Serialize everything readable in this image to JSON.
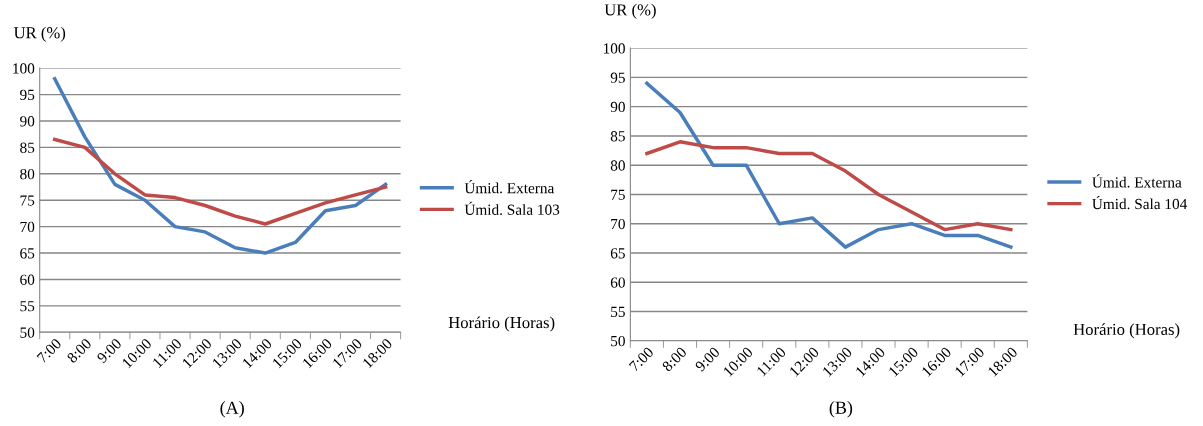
{
  "chart_data": [
    {
      "type": "line",
      "ylabel": "UR (%)",
      "xlabel": "Horário (Horas)",
      "annotations": [
        "(A)"
      ],
      "categories": [
        "7:00",
        "8:00",
        "9:00",
        "10:00",
        "11:00",
        "12:00",
        "13:00",
        "14:00",
        "15:00",
        "16:00",
        "17:00",
        "18:00"
      ],
      "series": [
        {
          "name": "Úmid. Externa",
          "color": "#4a7ebb",
          "values": [
            98,
            87,
            78,
            75,
            70,
            69,
            66,
            65,
            67,
            73,
            74,
            78
          ]
        },
        {
          "name": "Úmid. Sala 103",
          "color": "#be4b48",
          "values": [
            86.5,
            85,
            80,
            76,
            75.5,
            74,
            72,
            70.5,
            72.5,
            74.5,
            76,
            77.5
          ]
        }
      ],
      "ylim": [
        50,
        100
      ],
      "yticks": [
        50,
        55,
        60,
        65,
        70,
        75,
        80,
        85,
        90,
        95,
        100
      ],
      "grid": "y",
      "legend": "right"
    },
    {
      "type": "line",
      "ylabel": "UR (%)",
      "xlabel": "Horário (Horas)",
      "annotations": [
        "(B)"
      ],
      "categories": [
        "7:00",
        "8:00",
        "9:00",
        "10:00",
        "11:00",
        "12:00",
        "13:00",
        "14:00",
        "15:00",
        "16:00",
        "17:00",
        "18:00"
      ],
      "series": [
        {
          "name": "Úmid. Externa",
          "color": "#4a7ebb",
          "values": [
            94,
            89,
            80,
            80,
            70,
            71,
            66,
            69,
            70,
            68,
            68,
            66
          ]
        },
        {
          "name": "Úmid. Sala 104",
          "color": "#be4b48",
          "values": [
            82,
            84,
            83,
            83,
            82,
            82,
            79,
            75,
            72,
            69,
            70,
            69
          ]
        }
      ],
      "ylim": [
        50,
        100
      ],
      "yticks": [
        50,
        55,
        60,
        65,
        70,
        75,
        80,
        85,
        90,
        95,
        100
      ],
      "grid": "y",
      "legend": "right"
    }
  ]
}
